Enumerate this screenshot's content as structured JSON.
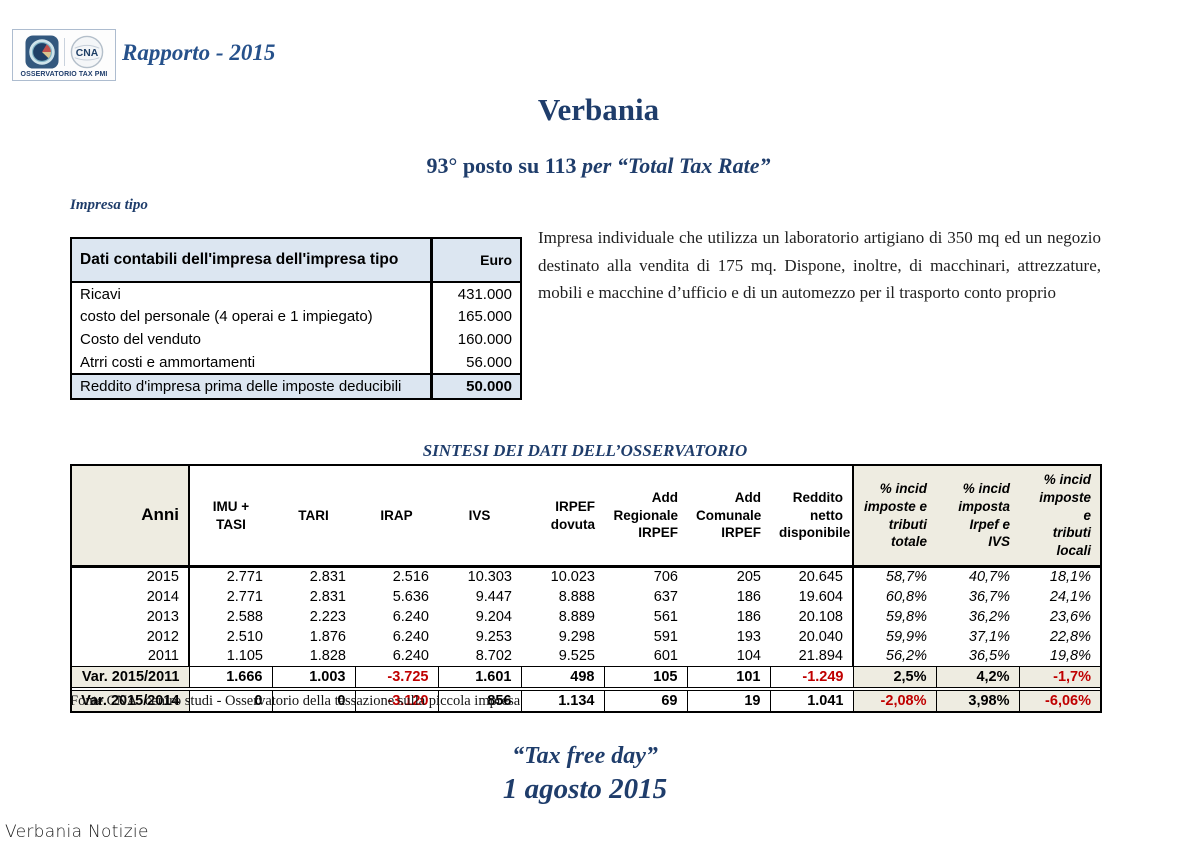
{
  "colors": {
    "navy": "#1f3d6b",
    "accent_blue": "#26518b",
    "red_negative": "#c00000",
    "table1_header_bg": "#dce6f1",
    "beige_bg": "#eeece1"
  },
  "header": {
    "report_title": "Rapporto - 2015",
    "logo_caption": "OSSERVATORIO TAX PMI",
    "logo_cna": "CNA"
  },
  "title": {
    "city": "Verbania",
    "rank_plain": "93° posto su 113 ",
    "rank_italic": "per “Total Tax Rate”"
  },
  "impresa": {
    "heading": "Impresa tipo",
    "description": "Impresa individuale che utilizza un laboratorio artigiano di 350 mq ed un negozio destinato alla vendita di 175 mq. Dispone, inoltre, di macchinari, attrezzature, mobili e macchine d’ufficio e di un automezzo per il trasporto conto proprio"
  },
  "account_table": {
    "header_label": "Dati contabili dell'impresa dell'impresa tipo",
    "header_unit": "Euro",
    "rows": [
      [
        "Ricavi",
        "431.000"
      ],
      [
        "costo del personale (4 operai e 1 impiegato)",
        "165.000"
      ],
      [
        "Costo del venduto",
        "160.000"
      ],
      [
        "Atrri costi e ammortamenti",
        "56.000"
      ]
    ],
    "total": [
      "Reddito d'impresa prima delle imposte deducibili",
      "50.000"
    ]
  },
  "sintesi_table": {
    "title": "SINTESI DEI DATI DELL’OSSERVATORIO",
    "columns": [
      "Anni",
      "IMU + TASI",
      "TARI",
      "IRAP",
      "IVS",
      "IRPEF\ndovuta",
      "Add\nRegionale\nIRPEF",
      "Add\nComunale\nIRPEF",
      "Reddito\nnetto\ndisponibile",
      "% incid\nimposte e\ntributi\ntotale",
      "% incid\nimposta\nIrpef e IVS",
      "% incid\nimposte e\ntributi\nlocali"
    ],
    "rows": [
      [
        "2015",
        "2.771",
        "2.831",
        "2.516",
        "10.303",
        "10.023",
        "706",
        "205",
        "20.645",
        "58,7%",
        "40,7%",
        "18,1%"
      ],
      [
        "2014",
        "2.771",
        "2.831",
        "5.636",
        "9.447",
        "8.888",
        "637",
        "186",
        "19.604",
        "60,8%",
        "36,7%",
        "24,1%"
      ],
      [
        "2013",
        "2.588",
        "2.223",
        "6.240",
        "9.204",
        "8.889",
        "561",
        "186",
        "20.108",
        "59,8%",
        "36,2%",
        "23,6%"
      ],
      [
        "2012",
        "2.510",
        "1.876",
        "6.240",
        "9.253",
        "9.298",
        "591",
        "193",
        "20.040",
        "59,9%",
        "37,1%",
        "22,8%"
      ],
      [
        "2011",
        "1.105",
        "1.828",
        "6.240",
        "8.702",
        "9.525",
        "601",
        "104",
        "21.894",
        "56,2%",
        "36,5%",
        "19,8%"
      ]
    ],
    "var_rows": [
      {
        "label": "Var. 2015/2011",
        "values": [
          "1.666",
          "1.003",
          "-3.725",
          "1.601",
          "498",
          "105",
          "101",
          "-1.249",
          "2,5%",
          "4,2%",
          "-1,7%"
        ]
      },
      {
        "label": "Var. 2015/2014",
        "values": [
          "0",
          "0",
          "-3.120",
          "856",
          "1.134",
          "69",
          "19",
          "1.041",
          "-2,08%",
          "3,98%",
          "-6,06%"
        ]
      }
    ]
  },
  "footer": {
    "fonte": "Fonte CNA: centro studi - Osservatorio della tassazione sulla piccola impresa",
    "tax_free_label": "“Tax free day”",
    "tax_free_date": "1 agosto 2015",
    "watermark": "Verbania Notizie"
  }
}
